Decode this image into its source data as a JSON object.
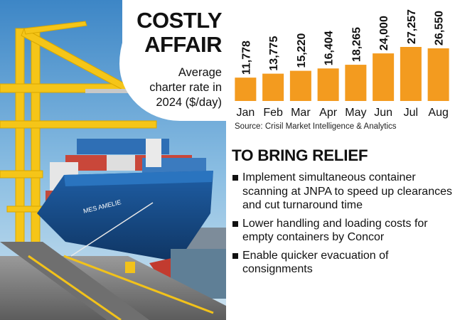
{
  "title": "COSTLY AFFAIR",
  "title_lines": [
    "COSTLY",
    "AFFAIR"
  ],
  "subtitle_lines": [
    "Average",
    "charter rate in",
    "2024 ($/day)"
  ],
  "photo": {
    "ship_name": "MES AMELIE"
  },
  "source": "Source: Crisil Market Intelligence & Analytics",
  "colors": {
    "bar": "#f39b1f",
    "text": "#111111"
  },
  "chart_data": {
    "type": "bar",
    "title": "Average charter rate in 2024 ($/day)",
    "categories": [
      "Jan",
      "Feb",
      "Mar",
      "Apr",
      "May",
      "Jun",
      "Jul",
      "Aug"
    ],
    "values": [
      11778,
      13775,
      15220,
      16404,
      18265,
      24000,
      27257,
      26550
    ],
    "value_labels": [
      "11,778",
      "13,775",
      "15,220",
      "16,404",
      "18,265",
      "24,000",
      "27,257",
      "26,550"
    ],
    "xlabel": "",
    "ylabel": "",
    "grid": false,
    "legend": "none"
  },
  "relief": {
    "heading": "TO BRING RELIEF",
    "items": [
      "Implement simultaneous container scanning at JNPA to speed up clearances and cut turnaround time",
      "Lower handling and loading costs for empty containers by Concor",
      "Enable quicker evacuation of consignments"
    ]
  }
}
